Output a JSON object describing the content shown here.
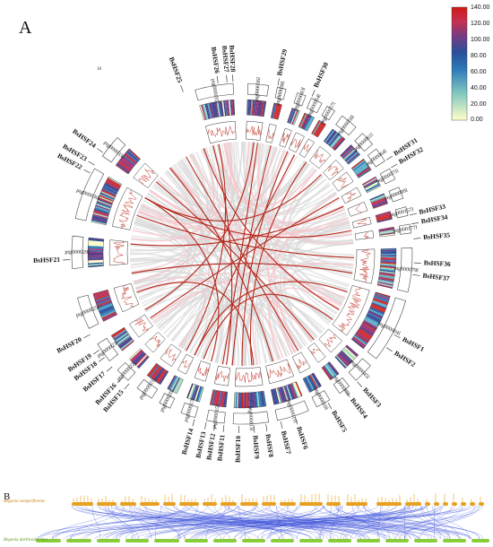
{
  "panels": {
    "a": "A",
    "b": "B"
  },
  "legend": {
    "ticks": [
      "140.00",
      "120.00",
      "100.00",
      "80.00",
      "60.00",
      "40.00",
      "20.00",
      "0.00"
    ],
    "colors": [
      "#ffffc8",
      "#5bb0c8",
      "#2a5fa8",
      "#6a3f8a",
      "#c83060",
      "#d01818"
    ]
  },
  "circos": {
    "chromosomes": [
      {
        "id": "ptg000035l"
      },
      {
        "id": "ptg000036l"
      },
      {
        "id": "ptg000038l"
      },
      {
        "id": "ptg000043l"
      },
      {
        "id": "ptg000054l"
      },
      {
        "id": "ptg000057l"
      },
      {
        "id": "ptg000058l"
      },
      {
        "id": "ptg000061l"
      },
      {
        "id": "ptg000064l"
      },
      {
        "id": "ptg000075l"
      },
      {
        "id": "ptg000099l"
      },
      {
        "id": "ptg000157l"
      },
      {
        "id": "ptg000177l"
      },
      {
        "id": "ptg000079l"
      },
      {
        "id": "ptg000004l"
      },
      {
        "id": "ptg000045l"
      },
      {
        "id": "ptg000089l"
      },
      {
        "id": "ptg000010l"
      },
      {
        "id": "ptg000011l"
      },
      {
        "id": "ptg000013l"
      },
      {
        "id": "ptg000015l"
      },
      {
        "id": "ptg000017l"
      },
      {
        "id": "ptg000020l"
      },
      {
        "id": "ptg000021l"
      },
      {
        "id": "ptg000022l"
      },
      {
        "id": "ptg000023l"
      },
      {
        "id": "ptg000025l"
      },
      {
        "id": "ptg000029l"
      },
      {
        "id": "ptg000030l"
      },
      {
        "id": "ptg000033l"
      }
    ],
    "genes": [
      "BsHSF1",
      "BsHSF2",
      "BsHSF3",
      "BsHSF4",
      "BsHSF5",
      "BsHSF6",
      "BsHSF7",
      "BsHSF8",
      "BsHSF9",
      "BsHSF10",
      "BsHSF11",
      "BsHSF12",
      "BsHSF13",
      "BsHSF14",
      "BsHSF15",
      "BsHSF16",
      "BsHSF17",
      "BsHSF18",
      "BsHSF19",
      "BsHSF20",
      "BsHSF21",
      "BsHSF22",
      "BsHSF23",
      "BsHSF24",
      "BsHSF25",
      "BsHSF26",
      "BsHSF27",
      "BsHSF28",
      "BsHSF29",
      "BsHSF30",
      "BsHSF31",
      "BsHSF32",
      "BsHSF33",
      "BsHSF34",
      "BsHSF35",
      "BsHSF36",
      "BsHSF37"
    ],
    "scale_label": "10"
  },
  "synteny": {
    "top_species": "Begonia semperflorens",
    "bottom_species": "Begonia darthvaderiana",
    "top_color": "#e8a020",
    "bottom_color": "#8acd3c",
    "link_color": "#3a4fd8"
  }
}
